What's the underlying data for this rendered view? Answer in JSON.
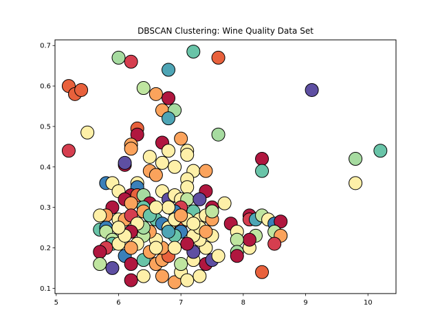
{
  "chart_data": {
    "type": "scatter",
    "title": "DBSCAN Clustering: Wine Quality Data Set",
    "xlabel": "",
    "ylabel": "",
    "xlim": [
      4.98,
      10.45
    ],
    "ylim": [
      0.087,
      0.714
    ],
    "x_ticks": [
      5,
      6,
      7,
      8,
      9,
      10
    ],
    "y_ticks": [
      0.1,
      0.2,
      0.3,
      0.4,
      0.5,
      0.6,
      0.7
    ],
    "grid": false,
    "legend": "none",
    "palette": {
      "red": "#b0173f",
      "red_orange": "#e8613c",
      "orange": "#fba35c",
      "yellow": "#fef0a8",
      "light_green": "#bfe5a0",
      "green": "#a6dba0",
      "teal": "#69c4a8",
      "blue_teal": "#4ea5b5",
      "blue": "#3a80b9",
      "purple": "#5e4fa2",
      "crimson": "#d53e4f"
    },
    "points": [
      {
        "x": 5.2,
        "y": 0.6,
        "c": "red_orange"
      },
      {
        "x": 5.3,
        "y": 0.58,
        "c": "red_orange"
      },
      {
        "x": 5.4,
        "y": 0.59,
        "c": "red_orange"
      },
      {
        "x": 5.2,
        "y": 0.44,
        "c": "crimson"
      },
      {
        "x": 5.5,
        "y": 0.485,
        "c": "yellow"
      },
      {
        "x": 6.0,
        "y": 0.67,
        "c": "green"
      },
      {
        "x": 6.2,
        "y": 0.66,
        "c": "crimson"
      },
      {
        "x": 6.8,
        "y": 0.64,
        "c": "blue_teal"
      },
      {
        "x": 7.2,
        "y": 0.685,
        "c": "teal"
      },
      {
        "x": 7.6,
        "y": 0.67,
        "c": "red_orange"
      },
      {
        "x": 6.4,
        "y": 0.595,
        "c": "light_green"
      },
      {
        "x": 6.6,
        "y": 0.58,
        "c": "orange"
      },
      {
        "x": 6.8,
        "y": 0.57,
        "c": "red"
      },
      {
        "x": 6.7,
        "y": 0.54,
        "c": "orange"
      },
      {
        "x": 6.9,
        "y": 0.54,
        "c": "green"
      },
      {
        "x": 6.8,
        "y": 0.52,
        "c": "blue_teal"
      },
      {
        "x": 7.6,
        "y": 0.48,
        "c": "green"
      },
      {
        "x": 6.3,
        "y": 0.495,
        "c": "red_orange"
      },
      {
        "x": 6.3,
        "y": 0.48,
        "c": "red"
      },
      {
        "x": 6.2,
        "y": 0.455,
        "c": "orange"
      },
      {
        "x": 6.2,
        "y": 0.445,
        "c": "orange"
      },
      {
        "x": 6.7,
        "y": 0.46,
        "c": "red"
      },
      {
        "x": 7.0,
        "y": 0.47,
        "c": "orange"
      },
      {
        "x": 6.8,
        "y": 0.44,
        "c": "yellow"
      },
      {
        "x": 7.1,
        "y": 0.44,
        "c": "yellow"
      },
      {
        "x": 7.1,
        "y": 0.43,
        "c": "yellow"
      },
      {
        "x": 6.5,
        "y": 0.425,
        "c": "yellow"
      },
      {
        "x": 6.1,
        "y": 0.405,
        "c": "red"
      },
      {
        "x": 6.1,
        "y": 0.41,
        "c": "purple"
      },
      {
        "x": 6.5,
        "y": 0.39,
        "c": "orange"
      },
      {
        "x": 6.6,
        "y": 0.38,
        "c": "orange"
      },
      {
        "x": 6.7,
        "y": 0.41,
        "c": "yellow"
      },
      {
        "x": 6.9,
        "y": 0.4,
        "c": "yellow"
      },
      {
        "x": 7.2,
        "y": 0.39,
        "c": "yellow"
      },
      {
        "x": 7.4,
        "y": 0.39,
        "c": "orange"
      },
      {
        "x": 8.3,
        "y": 0.42,
        "c": "red"
      },
      {
        "x": 8.3,
        "y": 0.39,
        "c": "teal"
      },
      {
        "x": 9.1,
        "y": 0.59,
        "c": "purple"
      },
      {
        "x": 9.8,
        "y": 0.42,
        "c": "green"
      },
      {
        "x": 10.2,
        "y": 0.44,
        "c": "teal"
      },
      {
        "x": 9.8,
        "y": 0.36,
        "c": "yellow"
      },
      {
        "x": 5.8,
        "y": 0.36,
        "c": "blue"
      },
      {
        "x": 5.9,
        "y": 0.36,
        "c": "yellow"
      },
      {
        "x": 6.0,
        "y": 0.34,
        "c": "yellow"
      },
      {
        "x": 6.3,
        "y": 0.36,
        "c": "yellow"
      },
      {
        "x": 6.3,
        "y": 0.35,
        "c": "blue"
      },
      {
        "x": 6.2,
        "y": 0.33,
        "c": "red"
      },
      {
        "x": 6.3,
        "y": 0.33,
        "c": "red_orange"
      },
      {
        "x": 6.4,
        "y": 0.33,
        "c": "green"
      },
      {
        "x": 6.1,
        "y": 0.32,
        "c": "red"
      },
      {
        "x": 6.2,
        "y": 0.31,
        "c": "orange"
      },
      {
        "x": 6.5,
        "y": 0.31,
        "c": "red"
      },
      {
        "x": 6.4,
        "y": 0.3,
        "c": "teal"
      },
      {
        "x": 6.7,
        "y": 0.34,
        "c": "yellow"
      },
      {
        "x": 7.1,
        "y": 0.37,
        "c": "yellow"
      },
      {
        "x": 7.1,
        "y": 0.35,
        "c": "yellow"
      },
      {
        "x": 7.4,
        "y": 0.34,
        "c": "red"
      },
      {
        "x": 6.8,
        "y": 0.32,
        "c": "purple"
      },
      {
        "x": 6.9,
        "y": 0.33,
        "c": "yellow"
      },
      {
        "x": 7.0,
        "y": 0.32,
        "c": "yellow"
      },
      {
        "x": 7.1,
        "y": 0.32,
        "c": "light_green"
      },
      {
        "x": 7.3,
        "y": 0.32,
        "c": "purple"
      },
      {
        "x": 7.5,
        "y": 0.3,
        "c": "red"
      },
      {
        "x": 7.7,
        "y": 0.31,
        "c": "yellow"
      },
      {
        "x": 7.2,
        "y": 0.29,
        "c": "teal"
      },
      {
        "x": 7.0,
        "y": 0.3,
        "c": "crimson"
      },
      {
        "x": 6.9,
        "y": 0.29,
        "c": "blue"
      },
      {
        "x": 6.8,
        "y": 0.3,
        "c": "yellow"
      },
      {
        "x": 5.9,
        "y": 0.3,
        "c": "red"
      },
      {
        "x": 5.8,
        "y": 0.28,
        "c": "orange"
      },
      {
        "x": 5.7,
        "y": 0.28,
        "c": "yellow"
      },
      {
        "x": 6.0,
        "y": 0.27,
        "c": "yellow"
      },
      {
        "x": 6.1,
        "y": 0.27,
        "c": "orange"
      },
      {
        "x": 6.2,
        "y": 0.28,
        "c": "crimson"
      },
      {
        "x": 6.4,
        "y": 0.29,
        "c": "orange"
      },
      {
        "x": 6.5,
        "y": 0.28,
        "c": "yellow"
      },
      {
        "x": 6.6,
        "y": 0.27,
        "c": "teal"
      },
      {
        "x": 6.7,
        "y": 0.26,
        "c": "blue"
      },
      {
        "x": 6.8,
        "y": 0.25,
        "c": "yellow"
      },
      {
        "x": 7.0,
        "y": 0.26,
        "c": "red_orange"
      },
      {
        "x": 7.1,
        "y": 0.27,
        "c": "yellow"
      },
      {
        "x": 7.3,
        "y": 0.27,
        "c": "yellow"
      },
      {
        "x": 7.4,
        "y": 0.28,
        "c": "yellow"
      },
      {
        "x": 7.5,
        "y": 0.27,
        "c": "orange"
      },
      {
        "x": 7.8,
        "y": 0.26,
        "c": "red"
      },
      {
        "x": 7.9,
        "y": 0.24,
        "c": "yellow"
      },
      {
        "x": 8.1,
        "y": 0.28,
        "c": "red"
      },
      {
        "x": 8.1,
        "y": 0.27,
        "c": "crimson"
      },
      {
        "x": 8.2,
        "y": 0.27,
        "c": "blue_teal"
      },
      {
        "x": 8.3,
        "y": 0.28,
        "c": "light_green"
      },
      {
        "x": 8.4,
        "y": 0.27,
        "c": "yellow"
      },
      {
        "x": 8.5,
        "y": 0.26,
        "c": "blue"
      },
      {
        "x": 8.6,
        "y": 0.265,
        "c": "red"
      },
      {
        "x": 8.5,
        "y": 0.24,
        "c": "light_green"
      },
      {
        "x": 8.6,
        "y": 0.23,
        "c": "orange"
      },
      {
        "x": 8.5,
        "y": 0.21,
        "c": "crimson"
      },
      {
        "x": 8.2,
        "y": 0.23,
        "c": "light_green"
      },
      {
        "x": 8.1,
        "y": 0.2,
        "c": "yellow"
      },
      {
        "x": 8.1,
        "y": 0.22,
        "c": "red"
      },
      {
        "x": 7.9,
        "y": 0.22,
        "c": "light_green"
      },
      {
        "x": 7.9,
        "y": 0.19,
        "c": "green"
      },
      {
        "x": 7.9,
        "y": 0.18,
        "c": "red"
      },
      {
        "x": 8.3,
        "y": 0.14,
        "c": "red_orange"
      },
      {
        "x": 5.7,
        "y": 0.245,
        "c": "teal"
      },
      {
        "x": 5.8,
        "y": 0.25,
        "c": "blue"
      },
      {
        "x": 5.8,
        "y": 0.24,
        "c": "light_green"
      },
      {
        "x": 5.9,
        "y": 0.22,
        "c": "light_green"
      },
      {
        "x": 5.9,
        "y": 0.21,
        "c": "teal"
      },
      {
        "x": 5.8,
        "y": 0.2,
        "c": "crimson"
      },
      {
        "x": 5.7,
        "y": 0.19,
        "c": "red"
      },
      {
        "x": 5.7,
        "y": 0.16,
        "c": "light_green"
      },
      {
        "x": 5.9,
        "y": 0.15,
        "c": "purple"
      },
      {
        "x": 6.0,
        "y": 0.21,
        "c": "yellow"
      },
      {
        "x": 6.1,
        "y": 0.18,
        "c": "blue"
      },
      {
        "x": 6.2,
        "y": 0.16,
        "c": "red"
      },
      {
        "x": 6.2,
        "y": 0.12,
        "c": "red"
      },
      {
        "x": 6.4,
        "y": 0.13,
        "c": "yellow"
      },
      {
        "x": 6.4,
        "y": 0.17,
        "c": "teal"
      },
      {
        "x": 6.5,
        "y": 0.19,
        "c": "orange"
      },
      {
        "x": 6.6,
        "y": 0.16,
        "c": "orange"
      },
      {
        "x": 6.7,
        "y": 0.13,
        "c": "orange"
      },
      {
        "x": 6.7,
        "y": 0.17,
        "c": "orange"
      },
      {
        "x": 6.8,
        "y": 0.18,
        "c": "red_orange"
      },
      {
        "x": 6.9,
        "y": 0.115,
        "c": "orange"
      },
      {
        "x": 7.0,
        "y": 0.14,
        "c": "yellow"
      },
      {
        "x": 7.0,
        "y": 0.16,
        "c": "light_green"
      },
      {
        "x": 7.1,
        "y": 0.12,
        "c": "yellow"
      },
      {
        "x": 7.2,
        "y": 0.17,
        "c": "yellow"
      },
      {
        "x": 7.2,
        "y": 0.19,
        "c": "purple"
      },
      {
        "x": 7.3,
        "y": 0.13,
        "c": "yellow"
      },
      {
        "x": 7.4,
        "y": 0.16,
        "c": "red"
      },
      {
        "x": 7.5,
        "y": 0.17,
        "c": "purple"
      },
      {
        "x": 7.6,
        "y": 0.18,
        "c": "yellow"
      },
      {
        "x": 7.4,
        "y": 0.2,
        "c": "yellow"
      },
      {
        "x": 7.5,
        "y": 0.23,
        "c": "yellow"
      },
      {
        "x": 7.3,
        "y": 0.22,
        "c": "yellow"
      },
      {
        "x": 7.2,
        "y": 0.23,
        "c": "yellow"
      },
      {
        "x": 7.1,
        "y": 0.21,
        "c": "red"
      },
      {
        "x": 7.0,
        "y": 0.24,
        "c": "blue"
      },
      {
        "x": 6.9,
        "y": 0.23,
        "c": "teal"
      },
      {
        "x": 6.8,
        "y": 0.24,
        "c": "blue_teal"
      },
      {
        "x": 6.7,
        "y": 0.2,
        "c": "orange"
      },
      {
        "x": 6.6,
        "y": 0.22,
        "c": "yellow"
      },
      {
        "x": 6.5,
        "y": 0.24,
        "c": "orange"
      },
      {
        "x": 6.4,
        "y": 0.23,
        "c": "light_green"
      },
      {
        "x": 6.4,
        "y": 0.25,
        "c": "green"
      },
      {
        "x": 6.3,
        "y": 0.26,
        "c": "yellow"
      },
      {
        "x": 6.2,
        "y": 0.24,
        "c": "red"
      },
      {
        "x": 6.3,
        "y": 0.21,
        "c": "yellow"
      },
      {
        "x": 6.2,
        "y": 0.2,
        "c": "orange"
      },
      {
        "x": 6.1,
        "y": 0.23,
        "c": "yellow"
      },
      {
        "x": 6.0,
        "y": 0.25,
        "c": "yellow"
      },
      {
        "x": 6.5,
        "y": 0.28,
        "c": "teal"
      },
      {
        "x": 6.6,
        "y": 0.3,
        "c": "yellow"
      },
      {
        "x": 6.9,
        "y": 0.27,
        "c": "yellow"
      },
      {
        "x": 7.0,
        "y": 0.28,
        "c": "orange"
      },
      {
        "x": 7.3,
        "y": 0.25,
        "c": "yellow"
      },
      {
        "x": 7.4,
        "y": 0.24,
        "c": "orange"
      },
      {
        "x": 7.5,
        "y": 0.29,
        "c": "light_green"
      },
      {
        "x": 7.2,
        "y": 0.26,
        "c": "yellow"
      },
      {
        "x": 6.9,
        "y": 0.2,
        "c": "yellow"
      },
      {
        "x": 6.6,
        "y": 0.2,
        "c": "yellow"
      }
    ]
  }
}
